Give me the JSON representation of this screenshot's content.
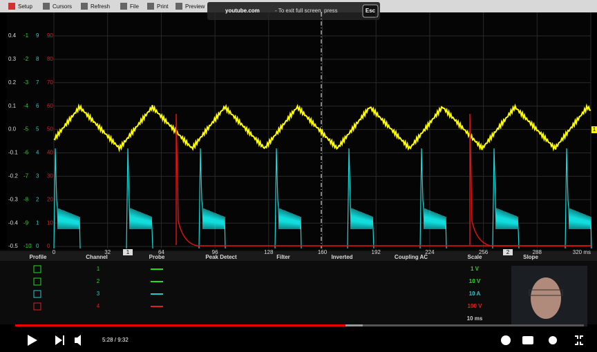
{
  "toolbar": {
    "items": [
      "Setup",
      "Cursors",
      "Refresh",
      "File",
      "Print",
      "Preview"
    ]
  },
  "banner": {
    "site": "youtube.com",
    "message": "- To exit full screen, press",
    "key": "Esc"
  },
  "scope": {
    "left_axis": {
      "col1": [
        "0.4",
        "0.3",
        "0.2",
        "0.1",
        "0.0",
        "-0.1",
        "-0.2",
        "-0.3",
        "-0.4",
        "-0.5"
      ],
      "col2": [
        "-1",
        "-2",
        "-3",
        "-4",
        "-5",
        "-6",
        "-7",
        "-8",
        "-9",
        "-10"
      ],
      "col3": [
        "9",
        "8",
        "7",
        "6",
        "5",
        "4",
        "3",
        "2",
        "1",
        "0"
      ],
      "col4": [
        "90",
        "80",
        "70",
        "60",
        "50",
        "40",
        "30",
        "20",
        "10",
        "0"
      ]
    },
    "x_axis": [
      "0",
      "32",
      "64",
      "96",
      "128",
      "160",
      "192",
      "224",
      "256",
      "288",
      "320 ms"
    ],
    "markers": [
      "1",
      "2"
    ],
    "right_marker": "1"
  },
  "channel_panel": {
    "headers": [
      "Profile",
      "Channel",
      "Probe",
      "Peak Detect",
      "Filter",
      "Inverted",
      "Coupling AC",
      "Scale",
      "Slope"
    ],
    "channels": [
      {
        "number": "1",
        "scale": "1 V"
      },
      {
        "number": "2",
        "scale": "10 V"
      },
      {
        "number": "3",
        "scale": "10 A"
      },
      {
        "number": "4",
        "scale": "100 V"
      }
    ],
    "timebase": "10 ms"
  },
  "player": {
    "time": "5:28 / 9:32"
  }
}
